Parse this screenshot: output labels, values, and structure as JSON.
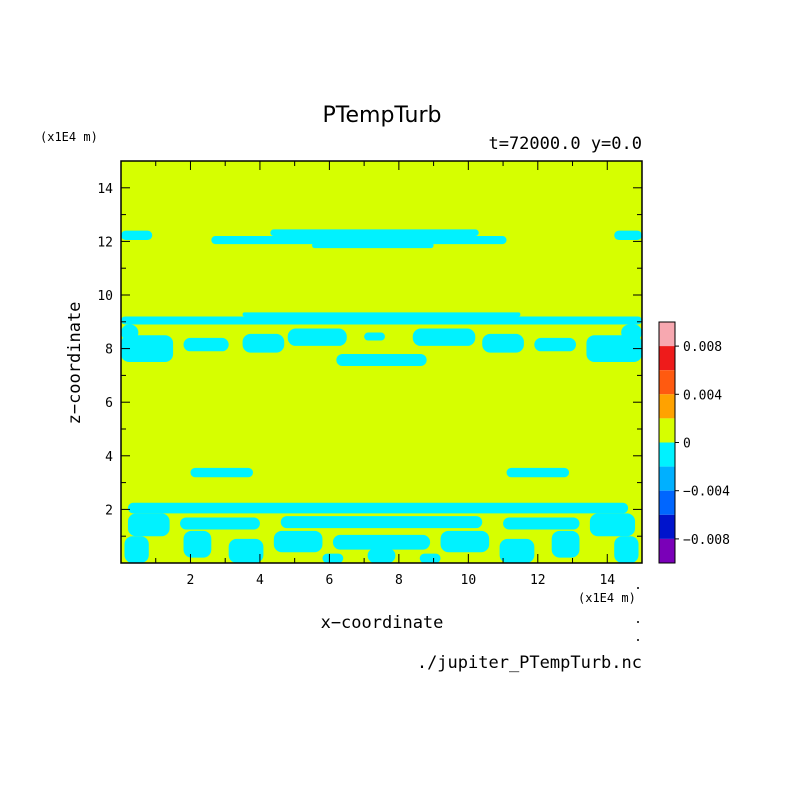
{
  "chart_data": {
    "type": "heatmap",
    "title": "PTempTurb",
    "subtitle": "t=72000.0 y=0.0",
    "xlabel": "x−coordinate",
    "ylabel": "z−coordinate",
    "x_unit": "(x1E4 m)",
    "y_unit": "(x1E4 m)",
    "source_file": "./jupiter_PTempTurb.nc",
    "xlim": [
      0,
      15
    ],
    "ylim": [
      0,
      15
    ],
    "x_ticks": [
      2,
      4,
      6,
      8,
      10,
      12,
      14
    ],
    "y_ticks": [
      2,
      4,
      6,
      8,
      10,
      12,
      14
    ],
    "colorbar": {
      "range": [
        -0.01,
        0.01
      ],
      "tick_values": [
        0.008,
        0.004,
        0,
        -0.004,
        -0.008
      ],
      "tick_labels": [
        "0.008",
        "0.004",
        "0",
        "−0.004",
        "−0.008"
      ],
      "levels": [
        {
          "from": 0.008,
          "to": 0.01,
          "color": "#f7a8b0"
        },
        {
          "from": 0.006,
          "to": 0.008,
          "color": "#ee1b1b"
        },
        {
          "from": 0.004,
          "to": 0.006,
          "color": "#ff5a10"
        },
        {
          "from": 0.002,
          "to": 0.004,
          "color": "#ffa200"
        },
        {
          "from": 0.0,
          "to": 0.002,
          "color": "#d6ff00"
        },
        {
          "from": -0.002,
          "to": 0.0,
          "color": "#00f2ff"
        },
        {
          "from": -0.004,
          "to": -0.002,
          "color": "#00b0ff"
        },
        {
          "from": -0.006,
          "to": -0.004,
          "color": "#0066ff"
        },
        {
          "from": -0.008,
          "to": -0.006,
          "color": "#0014cc"
        },
        {
          "from": -0.01,
          "to": -0.008,
          "color": "#7a00b8"
        }
      ]
    },
    "background_level_color": "#d6ff00",
    "negative_region_color": "#00f2ff",
    "negative_regions_xz": [
      {
        "x0": 0.0,
        "x1": 0.9,
        "z0": 12.05,
        "z1": 12.4
      },
      {
        "x0": 14.2,
        "x1": 15.0,
        "z0": 12.05,
        "z1": 12.4
      },
      {
        "x0": 2.6,
        "x1": 11.1,
        "z0": 11.9,
        "z1": 12.2
      },
      {
        "x0": 4.3,
        "x1": 10.3,
        "z0": 12.2,
        "z1": 12.45
      },
      {
        "x0": 5.5,
        "x1": 9.0,
        "z0": 11.75,
        "z1": 11.95
      },
      {
        "x0": 0.0,
        "x1": 15.0,
        "z0": 8.9,
        "z1": 9.2
      },
      {
        "x0": 3.5,
        "x1": 11.5,
        "z0": 9.2,
        "z1": 9.35
      },
      {
        "x0": 0.0,
        "x1": 0.5,
        "z0": 8.3,
        "z1": 8.9
      },
      {
        "x0": 14.4,
        "x1": 15.0,
        "z0": 8.3,
        "z1": 8.9
      },
      {
        "x0": 0.0,
        "x1": 1.5,
        "z0": 7.5,
        "z1": 8.5
      },
      {
        "x0": 13.4,
        "x1": 15.0,
        "z0": 7.5,
        "z1": 8.5
      },
      {
        "x0": 1.8,
        "x1": 3.1,
        "z0": 7.9,
        "z1": 8.4
      },
      {
        "x0": 3.5,
        "x1": 4.7,
        "z0": 7.85,
        "z1": 8.55
      },
      {
        "x0": 4.8,
        "x1": 6.5,
        "z0": 8.1,
        "z1": 8.75
      },
      {
        "x0": 8.4,
        "x1": 10.2,
        "z0": 8.1,
        "z1": 8.75
      },
      {
        "x0": 10.4,
        "x1": 11.6,
        "z0": 7.85,
        "z1": 8.55
      },
      {
        "x0": 11.9,
        "x1": 13.1,
        "z0": 7.9,
        "z1": 8.4
      },
      {
        "x0": 6.2,
        "x1": 8.8,
        "z0": 7.35,
        "z1": 7.8
      },
      {
        "x0": 7.0,
        "x1": 7.6,
        "z0": 8.3,
        "z1": 8.6
      },
      {
        "x0": 2.0,
        "x1": 3.8,
        "z0": 3.2,
        "z1": 3.55
      },
      {
        "x0": 11.1,
        "x1": 12.9,
        "z0": 3.2,
        "z1": 3.55
      },
      {
        "x0": 0.2,
        "x1": 14.6,
        "z0": 1.85,
        "z1": 2.25
      },
      {
        "x0": 0.2,
        "x1": 1.4,
        "z0": 1.0,
        "z1": 1.85
      },
      {
        "x0": 13.5,
        "x1": 14.8,
        "z0": 1.0,
        "z1": 1.85
      },
      {
        "x0": 1.7,
        "x1": 4.0,
        "z0": 1.25,
        "z1": 1.7
      },
      {
        "x0": 11.0,
        "x1": 13.2,
        "z0": 1.25,
        "z1": 1.7
      },
      {
        "x0": 4.6,
        "x1": 10.4,
        "z0": 1.3,
        "z1": 1.75
      },
      {
        "x0": 0.1,
        "x1": 0.8,
        "z0": 0.0,
        "z1": 1.0
      },
      {
        "x0": 14.2,
        "x1": 14.9,
        "z0": 0.0,
        "z1": 1.0
      },
      {
        "x0": 1.8,
        "x1": 2.6,
        "z0": 0.2,
        "z1": 1.2
      },
      {
        "x0": 12.4,
        "x1": 13.2,
        "z0": 0.2,
        "z1": 1.2
      },
      {
        "x0": 3.1,
        "x1": 4.1,
        "z0": 0.0,
        "z1": 0.9
      },
      {
        "x0": 10.9,
        "x1": 11.9,
        "z0": 0.0,
        "z1": 0.9
      },
      {
        "x0": 4.4,
        "x1": 5.8,
        "z0": 0.4,
        "z1": 1.2
      },
      {
        "x0": 9.2,
        "x1": 10.6,
        "z0": 0.4,
        "z1": 1.2
      },
      {
        "x0": 6.1,
        "x1": 8.9,
        "z0": 0.5,
        "z1": 1.05
      },
      {
        "x0": 7.1,
        "x1": 7.9,
        "z0": 0.0,
        "z1": 0.55
      },
      {
        "x0": 5.8,
        "x1": 6.4,
        "z0": 0.0,
        "z1": 0.35
      },
      {
        "x0": 8.6,
        "x1": 9.2,
        "z0": 0.0,
        "z1": 0.35
      }
    ],
    "grid": false,
    "legend": "colorbar-right"
  }
}
